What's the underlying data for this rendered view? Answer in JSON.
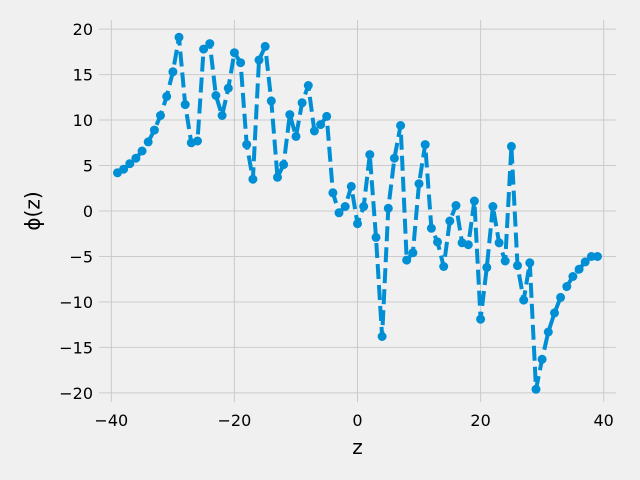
{
  "chart_data": {
    "type": "line",
    "xlabel": "z",
    "ylabel": "ϕ(z)",
    "xlim": [
      -42,
      42
    ],
    "ylim": [
      -21,
      21
    ],
    "xticks": [
      -40,
      -20,
      0,
      20,
      40
    ],
    "yticks": [
      -20,
      -15,
      -10,
      -5,
      0,
      5,
      10,
      15,
      20
    ],
    "xtick_labels": [
      "−40",
      "−20",
      "0",
      "20",
      "40"
    ],
    "ytick_labels": [
      "−20",
      "−15",
      "−10",
      "−5",
      "0",
      "5",
      "10",
      "15",
      "20"
    ],
    "grid": true,
    "line_style": "dashed",
    "marker": "circle",
    "color": "#008fd5",
    "background": "#f0f0f0",
    "grid_color": "#cbcbcb",
    "series": [
      {
        "x": [
          -39,
          -38,
          -37,
          -36,
          -35,
          -34,
          -33,
          -32,
          -31,
          -30,
          -29,
          -28,
          -27,
          -26,
          -25,
          -24,
          -23,
          -22,
          -21,
          -20,
          -19,
          -18,
          -17,
          -16,
          -15,
          -14,
          -13,
          -12,
          -11,
          -10,
          -9,
          -8,
          -7,
          -6,
          -5,
          -4,
          -3,
          -2,
          -1,
          0,
          1,
          2,
          3,
          4,
          5,
          6,
          7,
          8,
          9,
          10,
          11,
          12,
          13,
          14,
          15,
          16,
          17,
          18,
          19,
          20,
          21,
          22,
          23,
          24,
          25,
          26,
          27,
          28,
          29,
          30,
          31,
          32,
          33,
          34,
          35,
          36,
          37,
          38,
          39
        ],
        "y": [
          4.2,
          4.6,
          5.2,
          5.8,
          6.6,
          7.6,
          8.9,
          10.5,
          12.6,
          15.3,
          19.1,
          11.7,
          7.5,
          7.7,
          17.8,
          18.4,
          12.7,
          10.5,
          13.5,
          17.4,
          16.3,
          7.3,
          3.5,
          16.6,
          18.1,
          12.1,
          3.7,
          5.1,
          10.6,
          8.2,
          11.9,
          13.8,
          8.8,
          9.5,
          10.4,
          2.0,
          -0.2,
          0.5,
          2.7,
          -1.4,
          0.5,
          6.2,
          -2.9,
          -13.8,
          0.3,
          5.8,
          9.4,
          -5.4,
          -4.6,
          3.0,
          7.3,
          -1.9,
          -3.4,
          -6.1,
          -1.1,
          0.6,
          -3.5,
          -3.7,
          1.1,
          -11.9,
          -6.2,
          0.5,
          -3.5,
          -5.5,
          7.1,
          -6.0,
          -9.8,
          -5.7,
          -19.6,
          -16.3,
          -13.3,
          -11.2,
          -9.5,
          -8.3,
          -7.2,
          -6.4,
          -5.6,
          -5.0,
          -5.0
        ]
      }
    ]
  }
}
